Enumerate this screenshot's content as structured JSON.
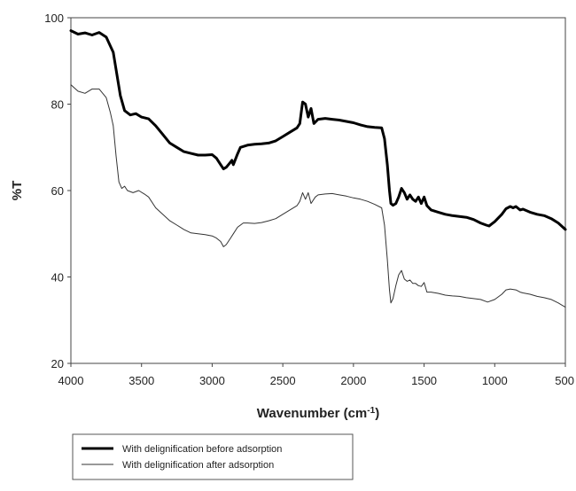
{
  "chart_data": {
    "type": "line",
    "xlabel": "Wavenumber (cm",
    "xlabel_superscript": "-1",
    "xlabel_suffix": ")",
    "ylabel": "%T",
    "xlim": [
      4000,
      500
    ],
    "ylim": [
      20,
      100
    ],
    "x_reversed": true,
    "x_ticks": [
      4000,
      3500,
      3000,
      2500,
      2000,
      1500,
      1000,
      500
    ],
    "y_ticks": [
      20,
      40,
      60,
      80,
      100
    ],
    "grid": false,
    "legend_position": "bottom-left, below the plot",
    "series": [
      {
        "name": "With delignification before adsorption",
        "style": "thick",
        "color": "#000000",
        "points": [
          [
            4000,
            97
          ],
          [
            3950,
            96.2
          ],
          [
            3900,
            96.5
          ],
          [
            3850,
            96
          ],
          [
            3800,
            96.6
          ],
          [
            3750,
            95.5
          ],
          [
            3700,
            92
          ],
          [
            3680,
            88
          ],
          [
            3650,
            82
          ],
          [
            3620,
            78.5
          ],
          [
            3580,
            77.5
          ],
          [
            3540,
            77.8
          ],
          [
            3500,
            77
          ],
          [
            3450,
            76.6
          ],
          [
            3400,
            75
          ],
          [
            3350,
            73
          ],
          [
            3300,
            71
          ],
          [
            3250,
            70
          ],
          [
            3200,
            69
          ],
          [
            3150,
            68.6
          ],
          [
            3100,
            68.2
          ],
          [
            3050,
            68.2
          ],
          [
            3000,
            68.3
          ],
          [
            2970,
            67.5
          ],
          [
            2940,
            66
          ],
          [
            2920,
            65
          ],
          [
            2900,
            65.4
          ],
          [
            2880,
            66.2
          ],
          [
            2860,
            67
          ],
          [
            2850,
            66
          ],
          [
            2820,
            68.5
          ],
          [
            2800,
            70
          ],
          [
            2750,
            70.5
          ],
          [
            2700,
            70.7
          ],
          [
            2650,
            70.8
          ],
          [
            2600,
            71
          ],
          [
            2550,
            71.5
          ],
          [
            2500,
            72.5
          ],
          [
            2450,
            73.5
          ],
          [
            2400,
            74.5
          ],
          [
            2380,
            75.5
          ],
          [
            2360,
            80.5
          ],
          [
            2340,
            80
          ],
          [
            2320,
            77
          ],
          [
            2300,
            79
          ],
          [
            2280,
            75.5
          ],
          [
            2250,
            76.5
          ],
          [
            2200,
            76.7
          ],
          [
            2150,
            76.5
          ],
          [
            2100,
            76.3
          ],
          [
            2050,
            76
          ],
          [
            2000,
            75.7
          ],
          [
            1950,
            75.2
          ],
          [
            1900,
            74.8
          ],
          [
            1850,
            74.6
          ],
          [
            1800,
            74.5
          ],
          [
            1780,
            72
          ],
          [
            1760,
            66
          ],
          [
            1745,
            60
          ],
          [
            1735,
            57
          ],
          [
            1720,
            56.6
          ],
          [
            1700,
            57
          ],
          [
            1680,
            58.5
          ],
          [
            1660,
            60.5
          ],
          [
            1640,
            59.5
          ],
          [
            1620,
            58
          ],
          [
            1600,
            59
          ],
          [
            1580,
            58
          ],
          [
            1560,
            57.5
          ],
          [
            1540,
            58.5
          ],
          [
            1520,
            57
          ],
          [
            1500,
            58.5
          ],
          [
            1480,
            56.5
          ],
          [
            1450,
            55.5
          ],
          [
            1400,
            55
          ],
          [
            1350,
            54.5
          ],
          [
            1300,
            54.2
          ],
          [
            1250,
            54
          ],
          [
            1200,
            53.8
          ],
          [
            1150,
            53.3
          ],
          [
            1100,
            52.5
          ],
          [
            1060,
            52
          ],
          [
            1040,
            51.8
          ],
          [
            1000,
            52.8
          ],
          [
            950,
            54.5
          ],
          [
            920,
            55.8
          ],
          [
            890,
            56.3
          ],
          [
            870,
            56
          ],
          [
            850,
            56.3
          ],
          [
            820,
            55.5
          ],
          [
            800,
            55.7
          ],
          [
            750,
            55
          ],
          [
            700,
            54.5
          ],
          [
            650,
            54.2
          ],
          [
            600,
            53.5
          ],
          [
            550,
            52.5
          ],
          [
            500,
            51
          ]
        ]
      },
      {
        "name": "With delignification after adsorption",
        "style": "thin",
        "color": "#333333",
        "points": [
          [
            4000,
            84.5
          ],
          [
            3950,
            83
          ],
          [
            3900,
            82.5
          ],
          [
            3850,
            83.5
          ],
          [
            3800,
            83.5
          ],
          [
            3750,
            81.5
          ],
          [
            3720,
            78
          ],
          [
            3700,
            75
          ],
          [
            3680,
            68
          ],
          [
            3660,
            62
          ],
          [
            3640,
            60.5
          ],
          [
            3620,
            61
          ],
          [
            3600,
            60
          ],
          [
            3560,
            59.5
          ],
          [
            3520,
            60
          ],
          [
            3480,
            59.2
          ],
          [
            3450,
            58.5
          ],
          [
            3400,
            56
          ],
          [
            3350,
            54.5
          ],
          [
            3300,
            53
          ],
          [
            3250,
            52
          ],
          [
            3200,
            51
          ],
          [
            3150,
            50.2
          ],
          [
            3100,
            50
          ],
          [
            3050,
            49.8
          ],
          [
            3000,
            49.5
          ],
          [
            2970,
            49
          ],
          [
            2940,
            48.2
          ],
          [
            2920,
            47
          ],
          [
            2900,
            47.5
          ],
          [
            2870,
            49
          ],
          [
            2850,
            50
          ],
          [
            2820,
            51.5
          ],
          [
            2780,
            52.5
          ],
          [
            2750,
            52.5
          ],
          [
            2700,
            52.4
          ],
          [
            2650,
            52.6
          ],
          [
            2600,
            53
          ],
          [
            2550,
            53.5
          ],
          [
            2500,
            54.5
          ],
          [
            2450,
            55.5
          ],
          [
            2400,
            56.5
          ],
          [
            2380,
            57.5
          ],
          [
            2360,
            59.5
          ],
          [
            2340,
            58
          ],
          [
            2320,
            59.5
          ],
          [
            2300,
            57
          ],
          [
            2270,
            58.5
          ],
          [
            2250,
            59
          ],
          [
            2200,
            59.2
          ],
          [
            2150,
            59.3
          ],
          [
            2100,
            59
          ],
          [
            2050,
            58.7
          ],
          [
            2000,
            58.3
          ],
          [
            1950,
            58
          ],
          [
            1900,
            57.5
          ],
          [
            1850,
            56.8
          ],
          [
            1800,
            56
          ],
          [
            1780,
            52
          ],
          [
            1760,
            44
          ],
          [
            1745,
            37
          ],
          [
            1735,
            34
          ],
          [
            1720,
            35
          ],
          [
            1700,
            38
          ],
          [
            1680,
            40.5
          ],
          [
            1660,
            41.5
          ],
          [
            1640,
            39.5
          ],
          [
            1620,
            39
          ],
          [
            1600,
            39.3
          ],
          [
            1580,
            38.5
          ],
          [
            1560,
            38.5
          ],
          [
            1540,
            38
          ],
          [
            1520,
            37.8
          ],
          [
            1500,
            38.7
          ],
          [
            1480,
            36.5
          ],
          [
            1450,
            36.5
          ],
          [
            1400,
            36.2
          ],
          [
            1350,
            35.8
          ],
          [
            1300,
            35.6
          ],
          [
            1250,
            35.5
          ],
          [
            1200,
            35.2
          ],
          [
            1150,
            35
          ],
          [
            1100,
            34.8
          ],
          [
            1050,
            34.2
          ],
          [
            1000,
            34.8
          ],
          [
            950,
            36
          ],
          [
            920,
            37
          ],
          [
            890,
            37.2
          ],
          [
            850,
            37
          ],
          [
            820,
            36.5
          ],
          [
            800,
            36.3
          ],
          [
            750,
            36
          ],
          [
            700,
            35.5
          ],
          [
            650,
            35.2
          ],
          [
            600,
            34.8
          ],
          [
            550,
            34
          ],
          [
            500,
            33
          ]
        ]
      }
    ]
  }
}
